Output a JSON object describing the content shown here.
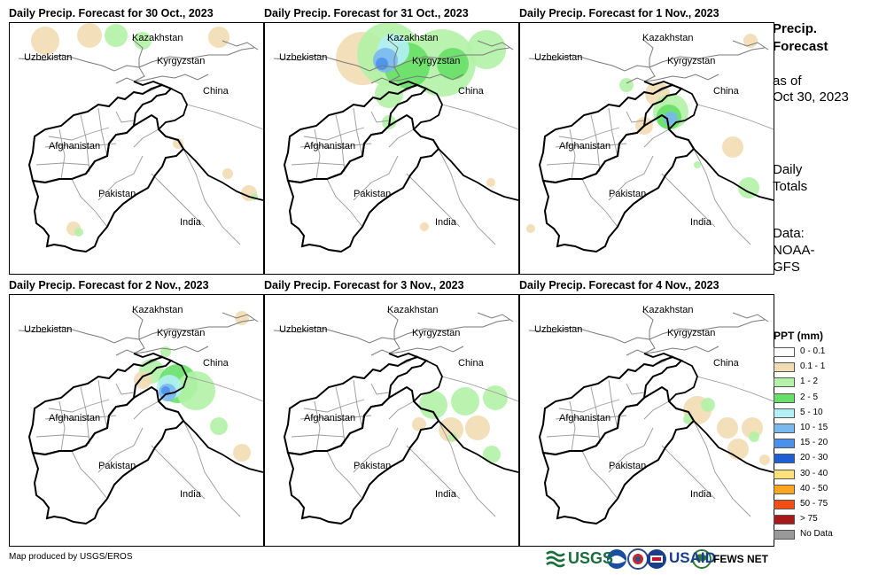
{
  "panels": [
    {
      "title": "Daily Precip. Forecast for 30 Oct., 2023",
      "precip": [
        {
          "lvl": "0.1-1",
          "cx": 40,
          "cy": 20,
          "r": 16
        },
        {
          "lvl": "0.1-1",
          "cx": 90,
          "cy": 14,
          "r": 14
        },
        {
          "lvl": "1-2",
          "cx": 120,
          "cy": 14,
          "r": 13
        },
        {
          "lvl": "1-2",
          "cx": 150,
          "cy": 20,
          "r": 10
        },
        {
          "lvl": "0.1-1",
          "cx": 236,
          "cy": 16,
          "r": 12
        },
        {
          "lvl": "0.1-1",
          "cx": 72,
          "cy": 232,
          "r": 8
        },
        {
          "lvl": "1-2",
          "cx": 78,
          "cy": 236,
          "r": 5
        },
        {
          "lvl": "0.1-1",
          "cx": 270,
          "cy": 192,
          "r": 9
        },
        {
          "lvl": "1-2",
          "cx": 276,
          "cy": 196,
          "r": 4
        },
        {
          "lvl": "0.1-1",
          "cx": 190,
          "cy": 136,
          "r": 6
        },
        {
          "lvl": "0.1-1",
          "cx": 246,
          "cy": 170,
          "r": 6
        }
      ]
    },
    {
      "title": "Daily Precip. Forecast for 31 Oct., 2023",
      "precip": [
        {
          "lvl": "0.1-1",
          "cx": 110,
          "cy": 40,
          "r": 30
        },
        {
          "lvl": "1-2",
          "cx": 140,
          "cy": 35,
          "r": 36
        },
        {
          "lvl": "1-2",
          "cx": 200,
          "cy": 45,
          "r": 38
        },
        {
          "lvl": "1-2",
          "cx": 250,
          "cy": 30,
          "r": 22
        },
        {
          "lvl": "2-5",
          "cx": 160,
          "cy": 48,
          "r": 26
        },
        {
          "lvl": "5-10",
          "cx": 145,
          "cy": 30,
          "r": 18
        },
        {
          "lvl": "10-15",
          "cx": 136,
          "cy": 42,
          "r": 14
        },
        {
          "lvl": "15-20",
          "cx": 132,
          "cy": 46,
          "r": 7
        },
        {
          "lvl": "2-5",
          "cx": 212,
          "cy": 46,
          "r": 18
        },
        {
          "lvl": "1-2",
          "cx": 140,
          "cy": 80,
          "r": 16
        },
        {
          "lvl": "1-2",
          "cx": 140,
          "cy": 112,
          "r": 8
        },
        {
          "lvl": "0.1-1",
          "cx": 180,
          "cy": 230,
          "r": 5
        },
        {
          "lvl": "0.1-1",
          "cx": 255,
          "cy": 180,
          "r": 5
        }
      ]
    },
    {
      "title": "Daily Precip. Forecast for 1 Nov., 2023",
      "precip": [
        {
          "lvl": "0.1-1",
          "cx": 155,
          "cy": 80,
          "r": 14
        },
        {
          "lvl": "1-2",
          "cx": 170,
          "cy": 100,
          "r": 20
        },
        {
          "lvl": "2-5",
          "cx": 168,
          "cy": 106,
          "r": 14
        },
        {
          "lvl": "10-15",
          "cx": 170,
          "cy": 108,
          "r": 8
        },
        {
          "lvl": "0.1-1",
          "cx": 140,
          "cy": 116,
          "r": 10
        },
        {
          "lvl": "1-2",
          "cx": 120,
          "cy": 70,
          "r": 8
        },
        {
          "lvl": "0.1-1",
          "cx": 240,
          "cy": 140,
          "r": 12
        },
        {
          "lvl": "1-2",
          "cx": 258,
          "cy": 186,
          "r": 12
        },
        {
          "lvl": "0.1-1",
          "cx": 12,
          "cy": 232,
          "r": 5
        },
        {
          "lvl": "0.1-1",
          "cx": 260,
          "cy": 20,
          "r": 8
        },
        {
          "lvl": "1-2",
          "cx": 200,
          "cy": 160,
          "r": 4
        }
      ]
    },
    {
      "title": "Daily Precip. Forecast for 2 Nov., 2023",
      "precip": [
        {
          "lvl": "1-2",
          "cx": 160,
          "cy": 86,
          "r": 14
        },
        {
          "lvl": "2-5",
          "cx": 190,
          "cy": 100,
          "r": 22
        },
        {
          "lvl": "1-2",
          "cx": 210,
          "cy": 108,
          "r": 22
        },
        {
          "lvl": "5-10",
          "cx": 180,
          "cy": 104,
          "r": 14
        },
        {
          "lvl": "10-15",
          "cx": 178,
          "cy": 110,
          "r": 10
        },
        {
          "lvl": "15-20",
          "cx": 176,
          "cy": 108,
          "r": 5
        },
        {
          "lvl": "0.1-1",
          "cx": 150,
          "cy": 96,
          "r": 10
        },
        {
          "lvl": "1-2",
          "cx": 236,
          "cy": 148,
          "r": 10
        },
        {
          "lvl": "0.1-1",
          "cx": 262,
          "cy": 178,
          "r": 10
        },
        {
          "lvl": "0.1-1",
          "cx": 262,
          "cy": 26,
          "r": 8
        },
        {
          "lvl": "1-2",
          "cx": 176,
          "cy": 64,
          "r": 6
        }
      ]
    },
    {
      "title": "Daily Precip. Forecast for 3 Nov., 2023",
      "precip": [
        {
          "lvl": "1-2",
          "cx": 190,
          "cy": 124,
          "r": 16
        },
        {
          "lvl": "1-2",
          "cx": 226,
          "cy": 120,
          "r": 16
        },
        {
          "lvl": "1-2",
          "cx": 260,
          "cy": 116,
          "r": 14
        },
        {
          "lvl": "0.1-1",
          "cx": 240,
          "cy": 150,
          "r": 14
        },
        {
          "lvl": "0.1-1",
          "cx": 210,
          "cy": 152,
          "r": 14
        },
        {
          "lvl": "1-2",
          "cx": 256,
          "cy": 180,
          "r": 10
        },
        {
          "lvl": "0.1-1",
          "cx": 174,
          "cy": 146,
          "r": 8
        },
        {
          "lvl": "1-2",
          "cx": 212,
          "cy": 160,
          "r": 5
        }
      ]
    },
    {
      "title": "Daily Precip. Forecast for 4 Nov., 2023",
      "precip": [
        {
          "lvl": "0.1-1",
          "cx": 200,
          "cy": 130,
          "r": 16
        },
        {
          "lvl": "1-2",
          "cx": 212,
          "cy": 124,
          "r": 8
        },
        {
          "lvl": "1-2",
          "cx": 190,
          "cy": 140,
          "r": 6
        },
        {
          "lvl": "0.1-1",
          "cx": 234,
          "cy": 150,
          "r": 12
        },
        {
          "lvl": "0.1-1",
          "cx": 262,
          "cy": 150,
          "r": 12
        },
        {
          "lvl": "1-2",
          "cx": 264,
          "cy": 160,
          "r": 6
        },
        {
          "lvl": "0.1-1",
          "cx": 246,
          "cy": 174,
          "r": 12
        },
        {
          "lvl": "0.1-1",
          "cx": 276,
          "cy": 186,
          "r": 6
        }
      ]
    }
  ],
  "map_labels": {
    "kazakhstan": "Kazakhstan",
    "uzbekistan": "Uzbekistan",
    "kyrgyzstan": "Kyrgyzstan",
    "china": "China",
    "afghanistan": "Afghanistan",
    "pakistan": "Pakistan",
    "india": "India"
  },
  "sidebar": {
    "title_line1": "Precip.",
    "title_line2": "Forecast",
    "asof_line1": "as of",
    "asof_line2": "Oct 30, 2023",
    "daily_line1": "Daily",
    "daily_line2": "Totals",
    "data_line1": "Data:",
    "data_line2": "NOAA-",
    "data_line3": "GFS"
  },
  "legend": {
    "title": "PPT (mm)",
    "items": [
      {
        "label": "0 - 0.1",
        "color": "#ffffff"
      },
      {
        "label": "0.1 - 1",
        "color": "#f2dcb3"
      },
      {
        "label": "1 - 2",
        "color": "#b3f2a6"
      },
      {
        "label": "2 - 5",
        "color": "#66e066"
      },
      {
        "label": "5 - 10",
        "color": "#b3f0f5"
      },
      {
        "label": "10 - 15",
        "color": "#7ab8f0"
      },
      {
        "label": "15 - 20",
        "color": "#4d90eb"
      },
      {
        "label": "20 - 30",
        "color": "#1f5fd6"
      },
      {
        "label": "30 - 40",
        "color": "#fce07a"
      },
      {
        "label": "40 - 50",
        "color": "#fca51f"
      },
      {
        "label": "50 - 75",
        "color": "#f24d14"
      },
      {
        "label": "> 75",
        "color": "#a81a1a"
      },
      {
        "label": "No Data",
        "color": "#999999"
      }
    ]
  },
  "precip_colors": {
    "0.1-1": "#f2dcb3",
    "1-2": "#b3f2a6",
    "2-5": "#66e066",
    "5-10": "#b3f0f5",
    "10-15": "#7ab8f0",
    "15-20": "#4d90eb"
  },
  "footer": {
    "credit": "Map produced by USGS/EROS",
    "usgs": "USGS",
    "usaid": "USAID",
    "fewsnet": "FEWS NET"
  }
}
